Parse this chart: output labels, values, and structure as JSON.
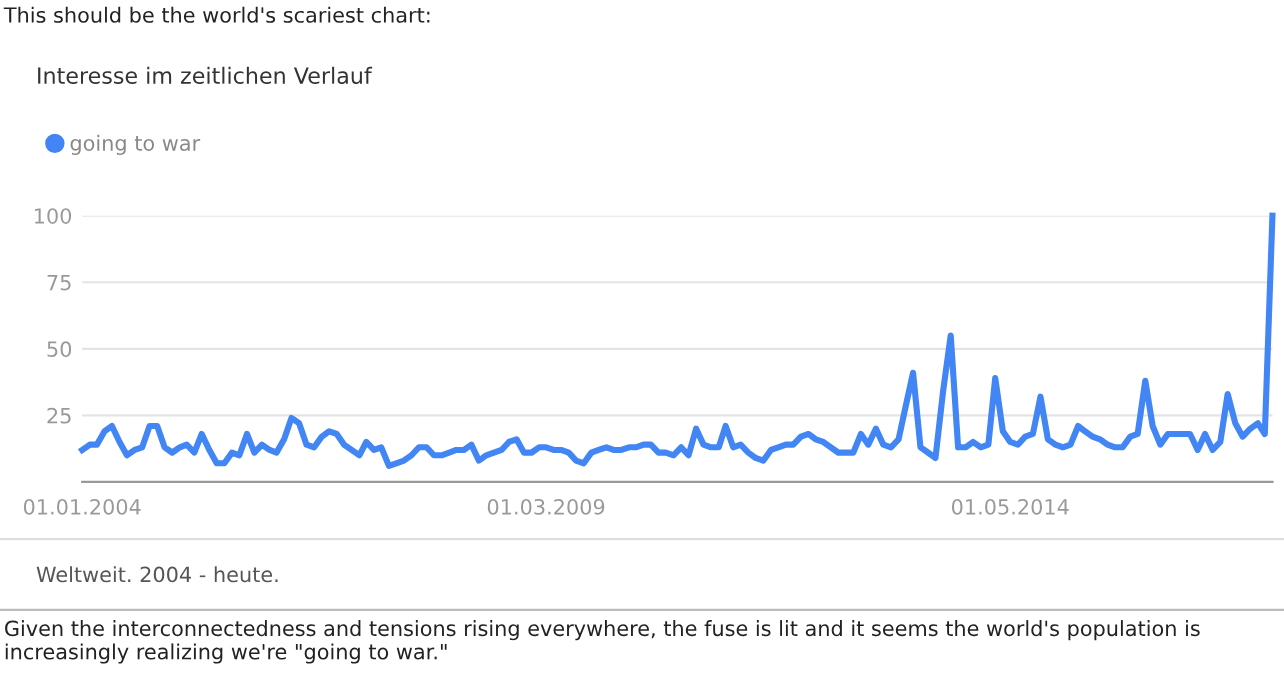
{
  "chart_data": {
    "type": "line",
    "title": "Interesse im zeitlichen Verlauf",
    "annotations": [
      "This should be the world's scariest chart:",
      "Weltweit. 2004 - heute.",
      "Given the interconnectedness and tensions rising everywhere, the fuse is lit and it seems the world's population is increasingly realizing we're \"going to war.\""
    ],
    "x": [
      "2004-01",
      "2004-02",
      "2004-03",
      "2004-04",
      "2004-05",
      "2004-06",
      "2004-07",
      "2004-08",
      "2004-09",
      "2004-10",
      "2004-11",
      "2004-12",
      "2005-01",
      "2005-02",
      "2005-03",
      "2005-04",
      "2005-05",
      "2005-06",
      "2005-07",
      "2005-08",
      "2005-09",
      "2005-10",
      "2005-11",
      "2005-12",
      "2006-01",
      "2006-02",
      "2006-03",
      "2006-04",
      "2006-05",
      "2006-06",
      "2006-07",
      "2006-08",
      "2006-09",
      "2006-10",
      "2006-11",
      "2006-12",
      "2007-01",
      "2007-02",
      "2007-03",
      "2007-04",
      "2007-05",
      "2007-06",
      "2007-07",
      "2007-08",
      "2007-09",
      "2007-10",
      "2007-11",
      "2007-12",
      "2008-01",
      "2008-02",
      "2008-03",
      "2008-04",
      "2008-05",
      "2008-06",
      "2008-07",
      "2008-08",
      "2008-09",
      "2008-10",
      "2008-11",
      "2008-12",
      "2009-01",
      "2009-02",
      "2009-03",
      "2009-04",
      "2009-05",
      "2009-06",
      "2009-07",
      "2009-08",
      "2009-09",
      "2009-10",
      "2009-11",
      "2009-12",
      "2010-01",
      "2010-02",
      "2010-03",
      "2010-04",
      "2010-05",
      "2010-06",
      "2010-07",
      "2010-08",
      "2010-09",
      "2010-10",
      "2010-11",
      "2010-12",
      "2011-01",
      "2011-02",
      "2011-03",
      "2011-04",
      "2011-05",
      "2011-06",
      "2011-07",
      "2011-08",
      "2011-09",
      "2011-10",
      "2011-11",
      "2011-12",
      "2012-01",
      "2012-02",
      "2012-03",
      "2012-04",
      "2012-05",
      "2012-06",
      "2012-07",
      "2012-08",
      "2012-09",
      "2012-10",
      "2012-11",
      "2012-12",
      "2013-01",
      "2013-02",
      "2013-03",
      "2013-04",
      "2013-05",
      "2013-06",
      "2013-07",
      "2013-08",
      "2013-09",
      "2013-10",
      "2013-11",
      "2013-12",
      "2014-01",
      "2014-02",
      "2014-03",
      "2014-04",
      "2014-05",
      "2014-06",
      "2014-07",
      "2014-08",
      "2014-09",
      "2014-10",
      "2014-11",
      "2014-12",
      "2015-01",
      "2015-02",
      "2015-03",
      "2015-04",
      "2015-05",
      "2015-06",
      "2015-07",
      "2015-08",
      "2015-09",
      "2015-10",
      "2015-11",
      "2015-12",
      "2016-01",
      "2016-02",
      "2016-03",
      "2016-04",
      "2016-05",
      "2016-06",
      "2016-07",
      "2016-08",
      "2016-09",
      "2016-10",
      "2016-11",
      "2016-12",
      "2017-01",
      "2017-02",
      "2017-03",
      "2017-04"
    ],
    "series": [
      {
        "name": "going to war",
        "color": "#4285f4",
        "values": [
          12,
          14,
          14,
          19,
          21,
          15,
          10,
          12,
          13,
          21,
          21,
          13,
          11,
          13,
          14,
          11,
          18,
          12,
          7,
          7,
          11,
          10,
          18,
          11,
          14,
          12,
          11,
          16,
          24,
          22,
          14,
          13,
          17,
          19,
          18,
          14,
          12,
          10,
          15,
          12,
          13,
          6,
          7,
          8,
          10,
          13,
          13,
          10,
          10,
          11,
          12,
          12,
          14,
          8,
          10,
          11,
          12,
          15,
          16,
          11,
          11,
          13,
          13,
          12,
          12,
          11,
          8,
          7,
          11,
          12,
          13,
          12,
          12,
          13,
          13,
          14,
          14,
          11,
          11,
          10,
          13,
          10,
          20,
          14,
          13,
          13,
          21,
          13,
          14,
          11,
          9,
          8,
          12,
          13,
          14,
          14,
          17,
          18,
          16,
          15,
          13,
          11,
          11,
          11,
          18,
          14,
          20,
          14,
          13,
          16,
          28,
          41,
          13,
          11,
          9,
          34,
          55,
          13,
          13,
          15,
          13,
          14,
          39,
          19,
          15,
          14,
          17,
          18,
          32,
          16,
          14,
          13,
          14,
          21,
          19,
          17,
          16,
          14,
          13,
          13,
          17,
          18,
          38,
          21,
          14,
          18,
          18,
          18,
          18,
          12,
          18,
          12,
          15,
          33,
          22,
          17,
          20,
          22,
          18,
          100
        ]
      }
    ],
    "xlim": [
      "2004-01",
      "2017-04"
    ],
    "xticks": [
      {
        "value": "2004-01",
        "label": "01.01.2004"
      },
      {
        "value": "2009-03",
        "label": "01.03.2009"
      },
      {
        "value": "2014-05",
        "label": "01.05.2014"
      }
    ],
    "ylim": [
      0,
      100
    ],
    "yticks": [
      25,
      50,
      75,
      100
    ],
    "grid": "y",
    "legend": "top left"
  }
}
